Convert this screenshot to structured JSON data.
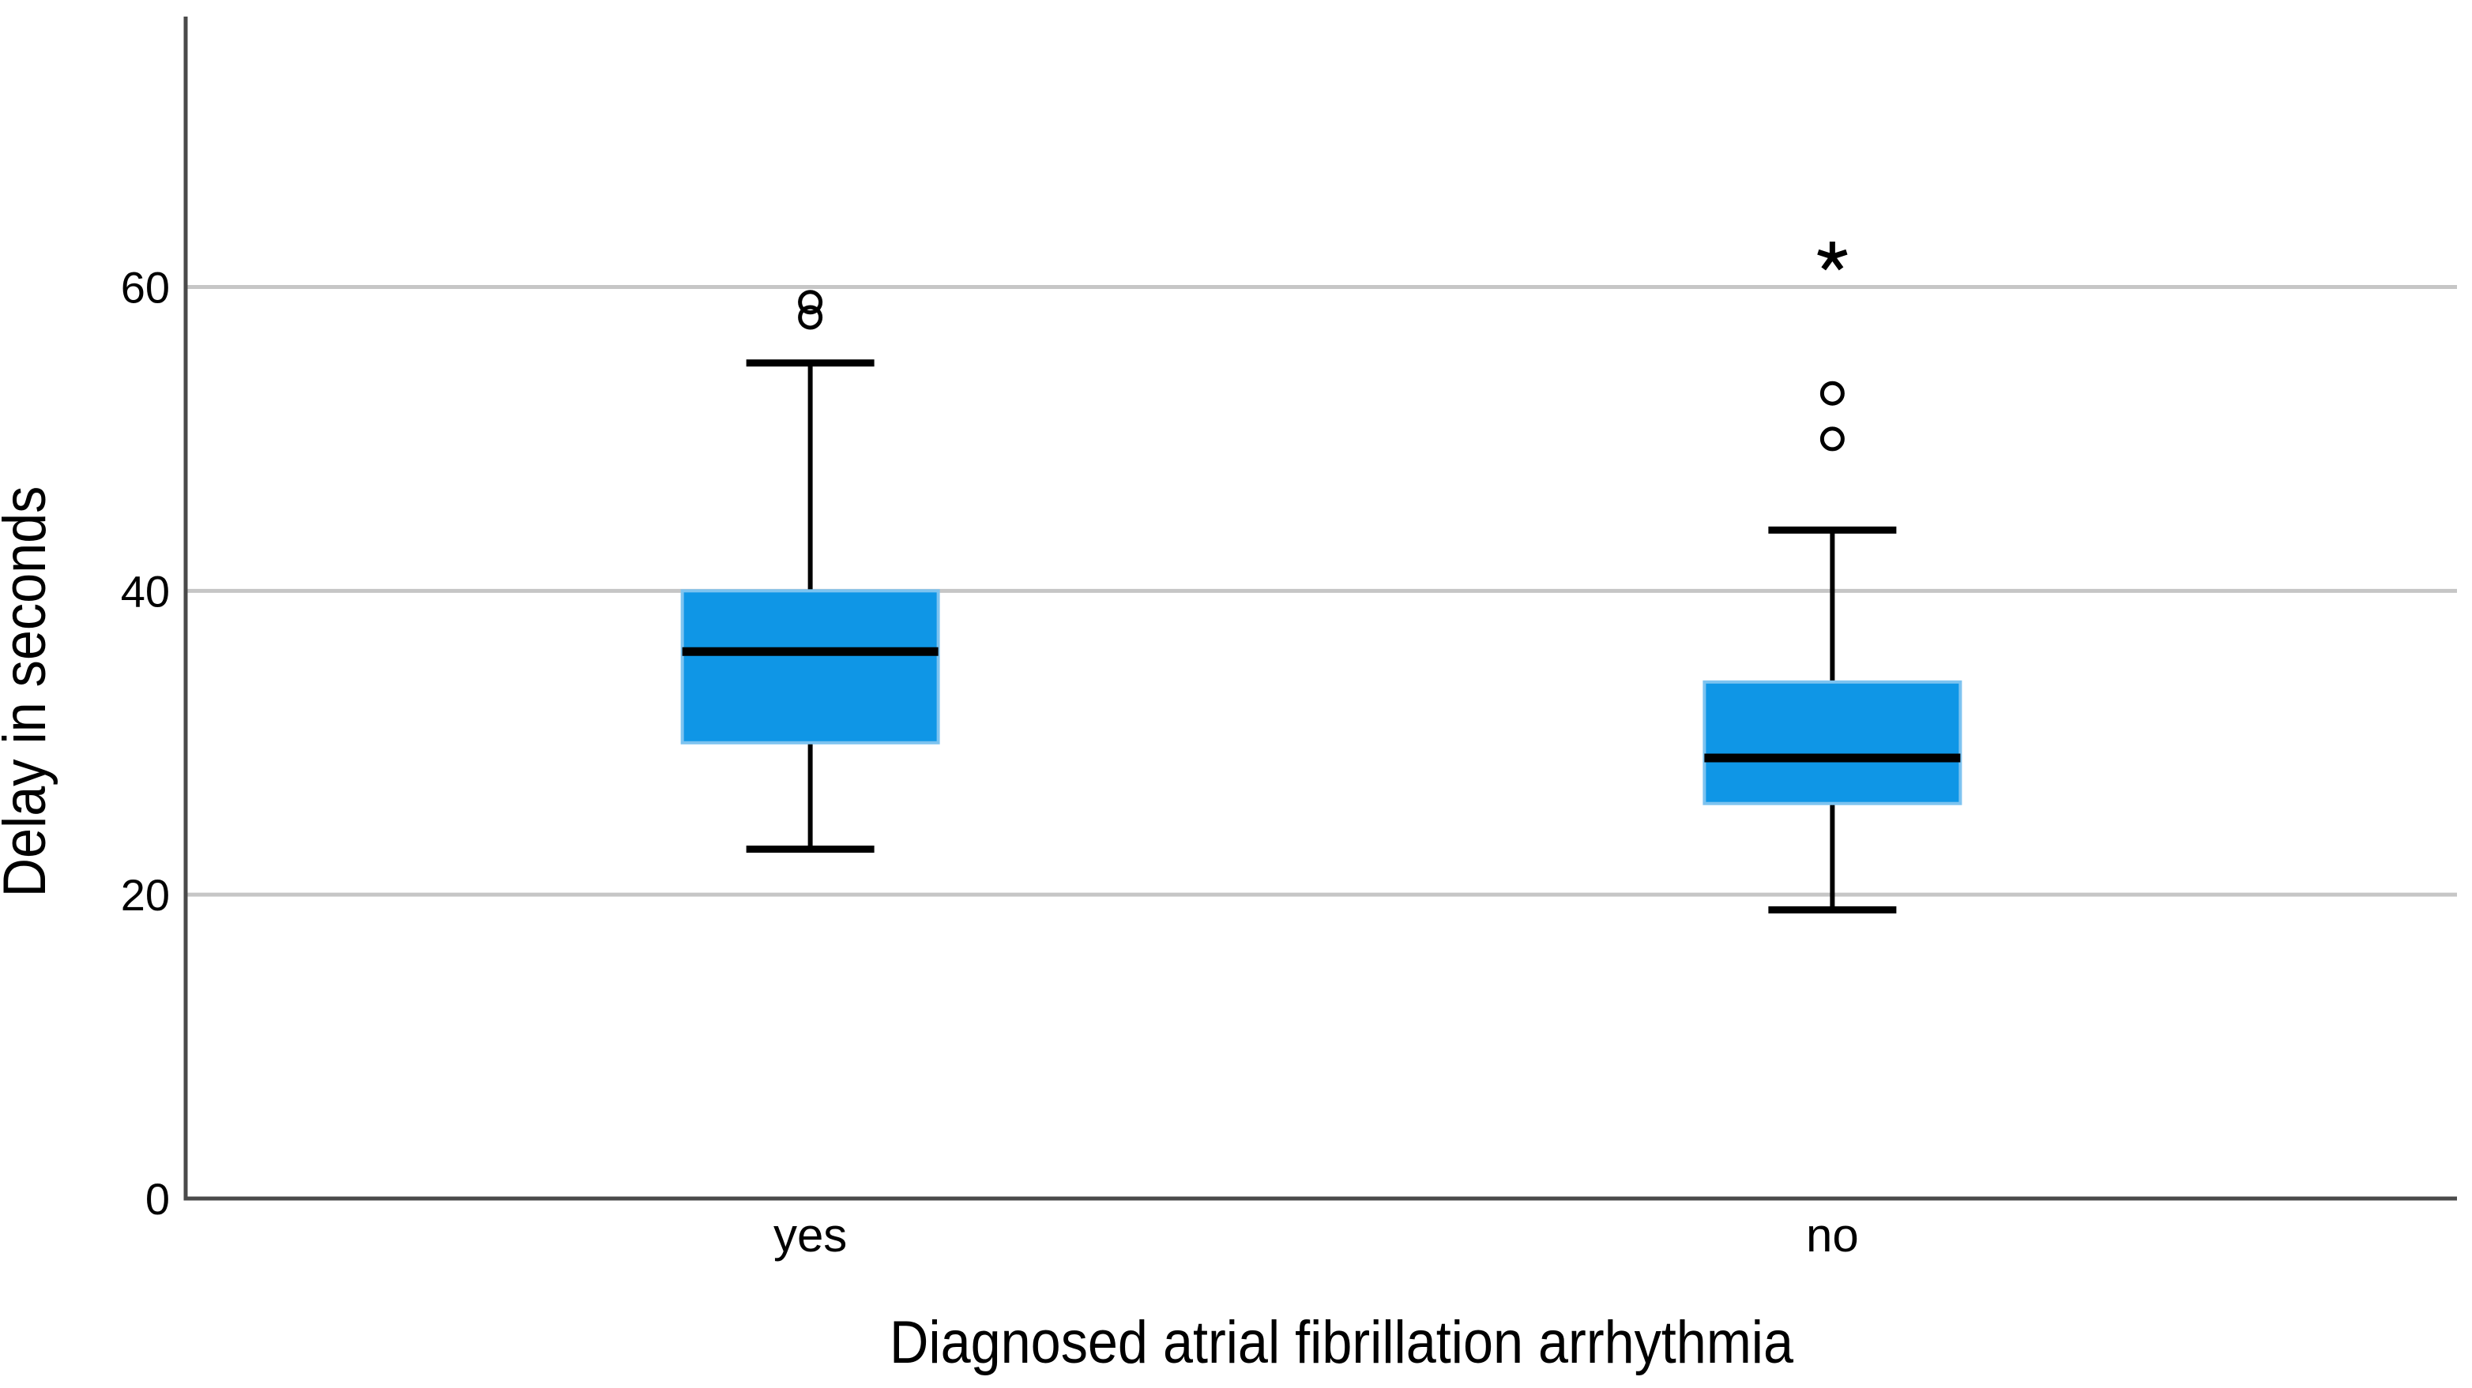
{
  "chart_data": {
    "type": "boxplot",
    "title": "",
    "xlabel": "Diagnosed atrial fibrillation arrhythmia",
    "ylabel": "Delay in seconds",
    "categories": [
      "yes",
      "no"
    ],
    "y_ticks": [
      0,
      20,
      40,
      60
    ],
    "ylim": [
      0,
      77.8
    ],
    "grid": "horizontal gridlines at y ticks (none at 0)",
    "legend": "none",
    "outlier_marker": "circle",
    "extreme_outlier_marker": "asterisk",
    "boxes": [
      {
        "category": "yes",
        "whisker_low": 23,
        "q1": 30,
        "median": 36,
        "q3": 40,
        "whisker_high": 55,
        "mild_outliers": [
          58,
          59
        ],
        "extreme_outliers": []
      },
      {
        "category": "no",
        "whisker_low": 19,
        "q1": 26,
        "median": 29,
        "q3": 34,
        "whisker_high": 44,
        "mild_outliers": [
          50,
          53
        ],
        "extreme_outliers": [
          62
        ]
      }
    ],
    "colors": {
      "box_fill": "#0F96E6",
      "box_edge": "#7DC3F0",
      "median": "#000000",
      "whisker": "#000000",
      "outlier": "#000000",
      "axis": "#4A4A4A",
      "gridline": "#C6C6C6",
      "text": "#000000",
      "background": "#FFFFFF"
    }
  }
}
